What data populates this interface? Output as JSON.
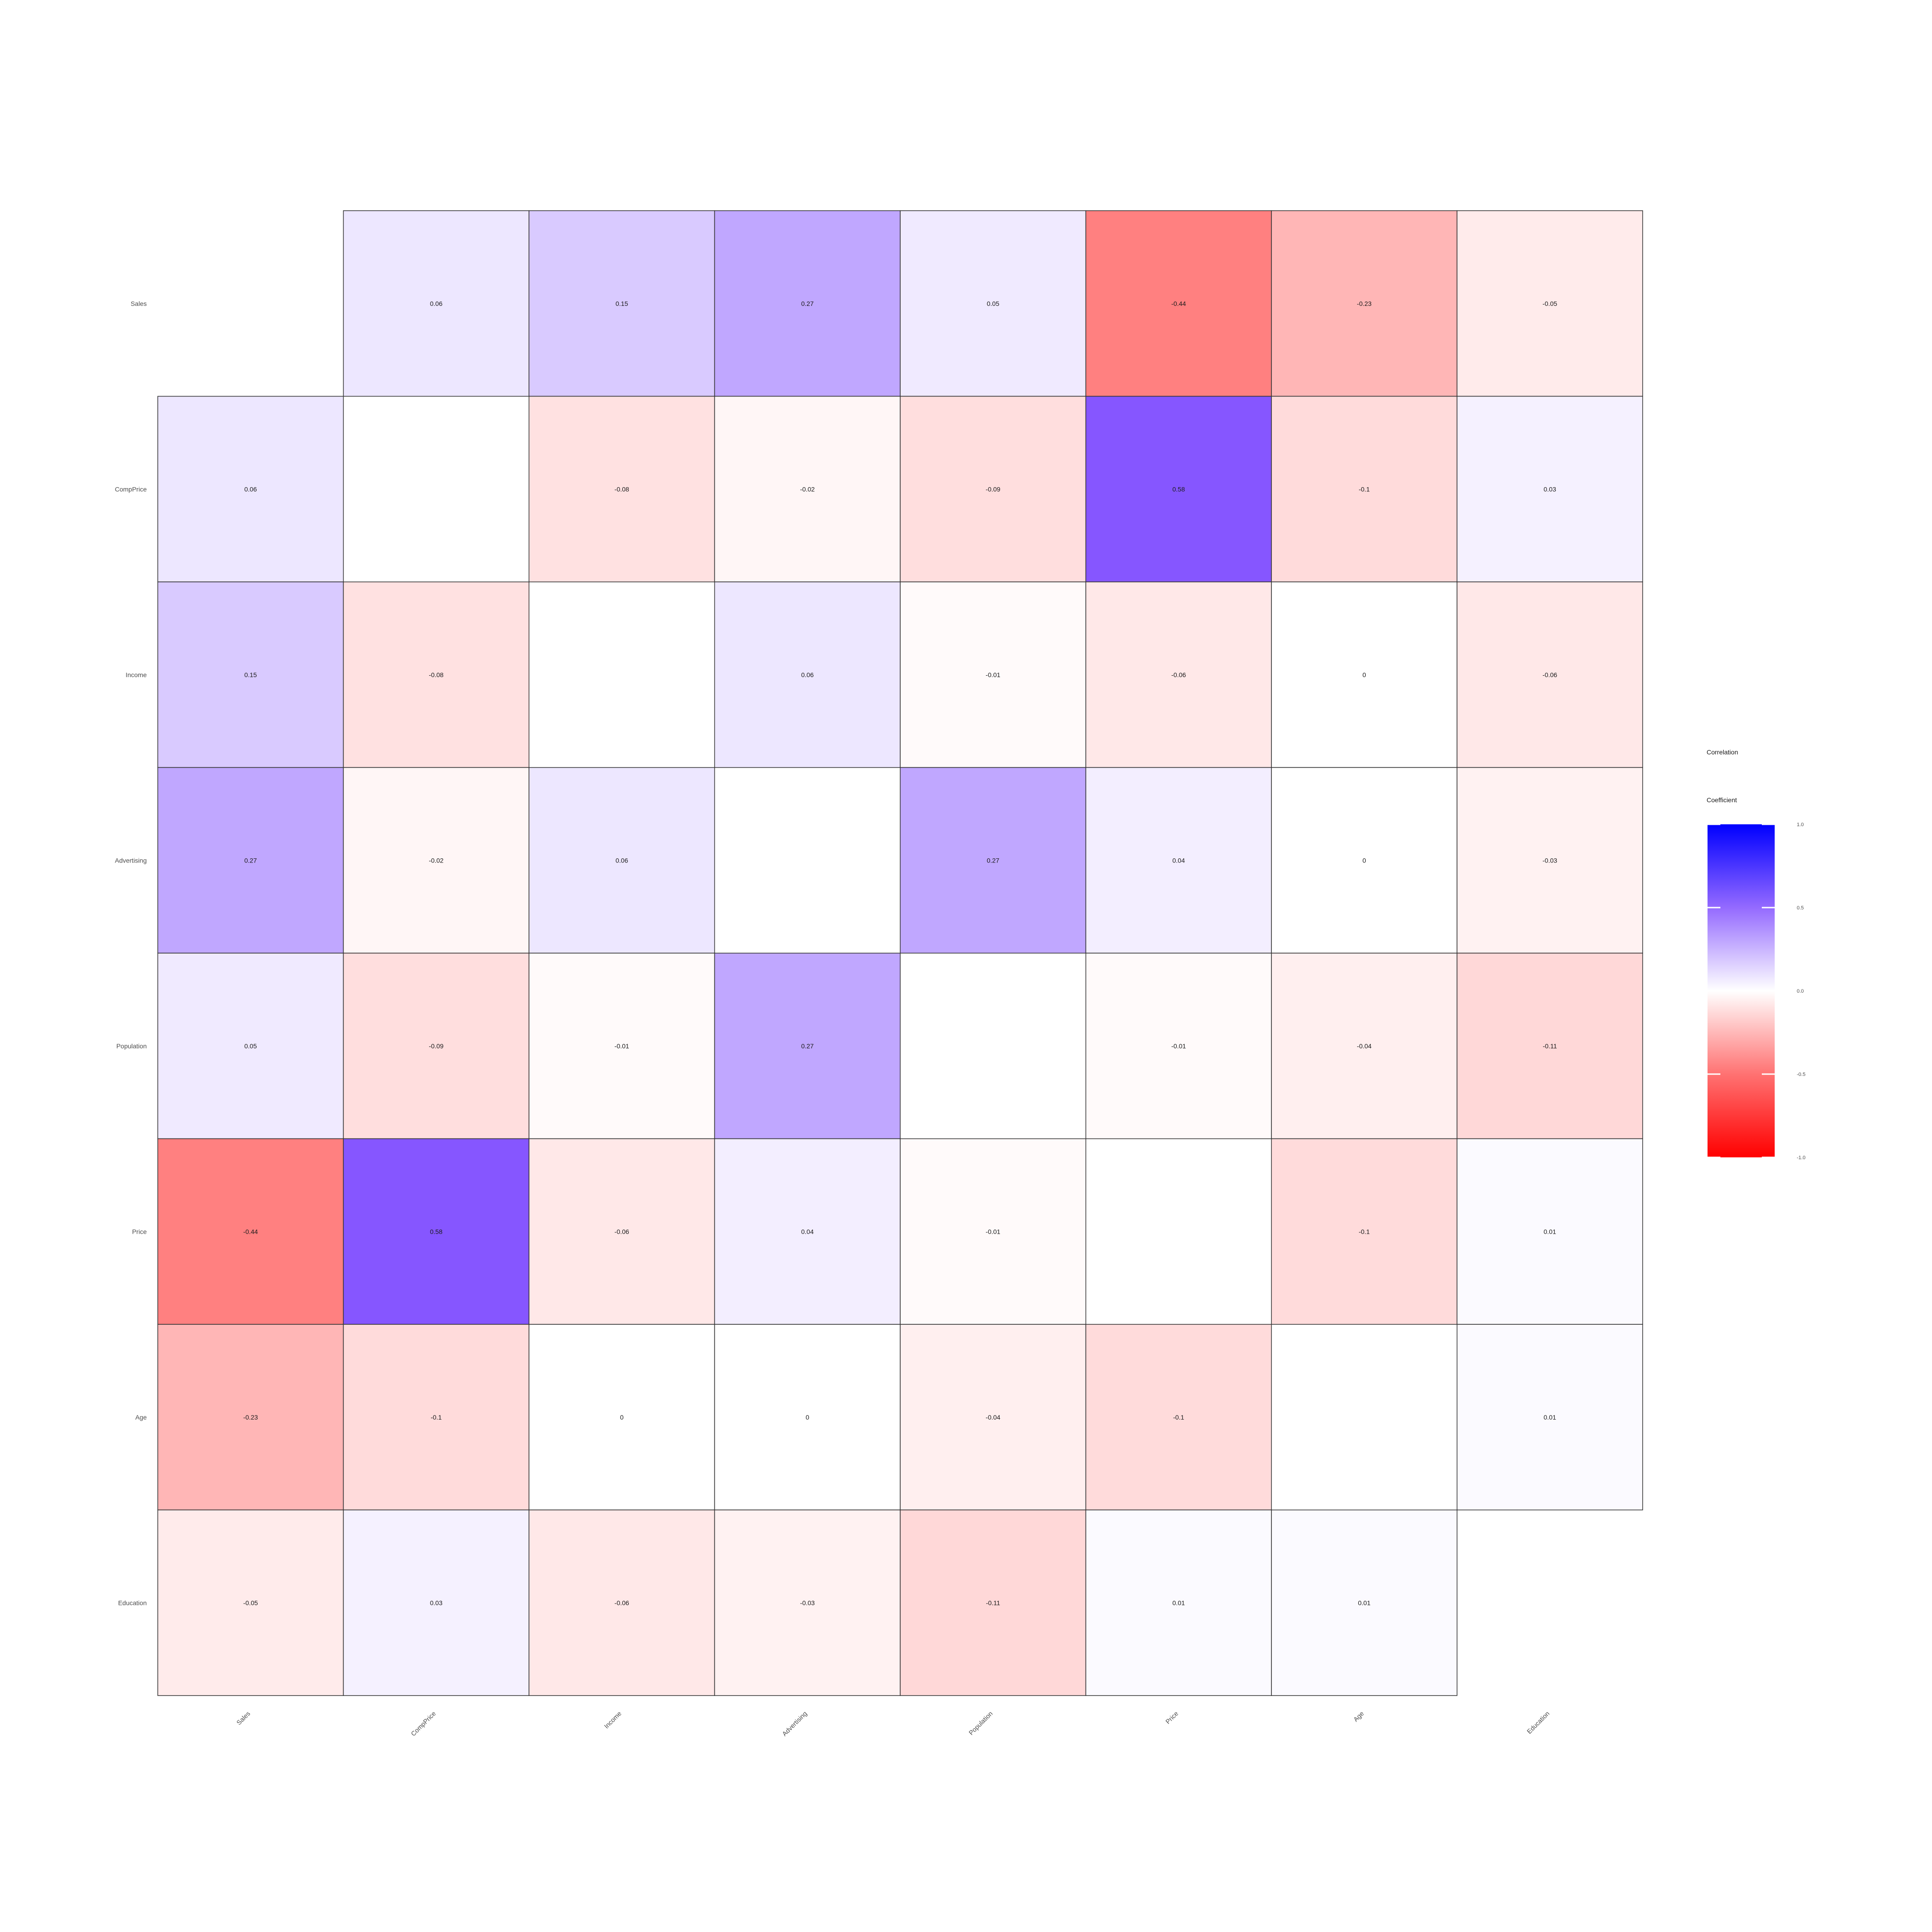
{
  "chart_data": {
    "type": "heatmap",
    "variables": [
      "Sales",
      "CompPrice",
      "Income",
      "Advertising",
      "Population",
      "Price",
      "Age",
      "Education"
    ],
    "matrix": [
      [
        null,
        0.06,
        0.15,
        0.27,
        0.05,
        -0.44,
        -0.23,
        -0.05
      ],
      [
        0.06,
        null,
        -0.08,
        -0.02,
        -0.09,
        0.58,
        -0.1,
        0.03
      ],
      [
        0.15,
        -0.08,
        null,
        0.06,
        -0.01,
        -0.06,
        0,
        -0.06
      ],
      [
        0.27,
        -0.02,
        0.06,
        null,
        0.27,
        0.04,
        0,
        -0.03
      ],
      [
        0.05,
        -0.09,
        -0.01,
        0.27,
        null,
        -0.01,
        -0.04,
        -0.11
      ],
      [
        -0.44,
        0.58,
        -0.06,
        0.04,
        -0.01,
        null,
        -0.1,
        0.01
      ],
      [
        -0.23,
        -0.1,
        0,
        0,
        -0.04,
        -0.1,
        null,
        0.01
      ],
      [
        -0.05,
        0.03,
        -0.06,
        -0.03,
        -0.11,
        0.01,
        0.01,
        null
      ]
    ],
    "labels": [
      [
        "",
        "0.06",
        "0.15",
        "0.27",
        "0.05",
        "-0.44",
        "-0.23",
        "-0.05"
      ],
      [
        "0.06",
        "",
        "-0.08",
        "-0.02",
        "-0.09",
        "0.58",
        "-0.1",
        "0.03"
      ],
      [
        "0.15",
        "-0.08",
        "",
        "0.06",
        "-0.01",
        "-0.06",
        "0",
        "-0.06"
      ],
      [
        "0.27",
        "-0.02",
        "0.06",
        "",
        "0.27",
        "0.04",
        "0",
        "-0.03"
      ],
      [
        "0.05",
        "-0.09",
        "-0.01",
        "0.27",
        "",
        "-0.01",
        "-0.04",
        "-0.11"
      ],
      [
        "-0.44",
        "0.58",
        "-0.06",
        "0.04",
        "-0.01",
        "",
        "-0.1",
        "0.01"
      ],
      [
        "-0.23",
        "-0.1",
        "0",
        "0",
        "-0.04",
        "-0.1",
        "",
        "0.01"
      ],
      [
        "-0.05",
        "0.03",
        "-0.06",
        "-0.03",
        "-0.11",
        "0.01",
        "0.01",
        ""
      ]
    ],
    "legend": {
      "title_lines": [
        "Correlation",
        "Coefficient"
      ],
      "ticks": [
        1.0,
        0.5,
        0.0,
        -0.5,
        -1.0
      ],
      "tick_labels": [
        "1.0",
        "0.5",
        "0.0",
        "-0.5",
        "-1.0"
      ],
      "range": [
        -1,
        1
      ],
      "low_color": "#ff0000",
      "mid_color": "#ffffff",
      "high_color": "#0000ff",
      "placement": "right"
    },
    "grid": false
  }
}
